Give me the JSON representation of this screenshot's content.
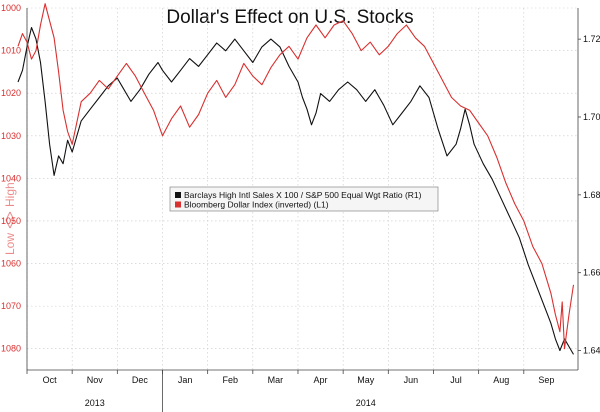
{
  "chart_data": {
    "type": "line",
    "title": "Dollar's Effect on U.S. Stocks",
    "left_axis": {
      "label_low": "Low",
      "label_high": "High",
      "inverted": true,
      "range": [
        1000,
        1085
      ],
      "ticks": [
        "1000",
        "1010",
        "1020",
        "1030",
        "1040",
        "1050",
        "1060",
        "1070",
        "1080"
      ],
      "color": "#d93030"
    },
    "right_axis": {
      "range": [
        1.635,
        1.728
      ],
      "ticks": [
        "1.72",
        "1.70",
        "1.68",
        "1.66",
        "1.64"
      ],
      "color": "#111111"
    },
    "x_axis": {
      "months": [
        "Oct",
        "Nov",
        "Dec",
        "Jan",
        "Feb",
        "Mar",
        "Apr",
        "May",
        "Jun",
        "Jul",
        "Aug",
        "Sep"
      ],
      "years": [
        "2013",
        "2014"
      ],
      "range": [
        0,
        12.2
      ]
    },
    "series": [
      {
        "name": "Barclays High Intl Sales X 100 / S&P 500 Equal Wgt Ratio (R1)",
        "axis": "right",
        "color": "#111111",
        "points": [
          [
            -0.2,
            1.709
          ],
          [
            -0.1,
            1.712
          ],
          [
            0.0,
            1.718
          ],
          [
            0.1,
            1.723
          ],
          [
            0.2,
            1.72
          ],
          [
            0.3,
            1.714
          ],
          [
            0.4,
            1.704
          ],
          [
            0.5,
            1.693
          ],
          [
            0.6,
            1.685
          ],
          [
            0.7,
            1.69
          ],
          [
            0.8,
            1.688
          ],
          [
            0.9,
            1.694
          ],
          [
            1.0,
            1.691
          ],
          [
            1.1,
            1.695
          ],
          [
            1.2,
            1.699
          ],
          [
            1.4,
            1.702
          ],
          [
            1.6,
            1.705
          ],
          [
            1.8,
            1.708
          ],
          [
            2.0,
            1.71
          ],
          [
            2.1,
            1.708
          ],
          [
            2.3,
            1.704
          ],
          [
            2.5,
            1.707
          ],
          [
            2.7,
            1.711
          ],
          [
            2.9,
            1.714
          ],
          [
            3.0,
            1.712
          ],
          [
            3.2,
            1.709
          ],
          [
            3.4,
            1.712
          ],
          [
            3.6,
            1.715
          ],
          [
            3.8,
            1.713
          ],
          [
            4.0,
            1.716
          ],
          [
            4.2,
            1.719
          ],
          [
            4.4,
            1.717
          ],
          [
            4.6,
            1.72
          ],
          [
            4.8,
            1.717
          ],
          [
            5.0,
            1.714
          ],
          [
            5.2,
            1.718
          ],
          [
            5.4,
            1.72
          ],
          [
            5.6,
            1.718
          ],
          [
            5.8,
            1.713
          ],
          [
            6.0,
            1.709
          ],
          [
            6.1,
            1.705
          ],
          [
            6.2,
            1.702
          ],
          [
            6.3,
            1.698
          ],
          [
            6.4,
            1.701
          ],
          [
            6.5,
            1.706
          ],
          [
            6.7,
            1.704
          ],
          [
            6.9,
            1.707
          ],
          [
            7.1,
            1.709
          ],
          [
            7.3,
            1.707
          ],
          [
            7.5,
            1.704
          ],
          [
            7.7,
            1.707
          ],
          [
            7.9,
            1.703
          ],
          [
            8.1,
            1.698
          ],
          [
            8.3,
            1.701
          ],
          [
            8.5,
            1.704
          ],
          [
            8.7,
            1.708
          ],
          [
            8.9,
            1.705
          ],
          [
            9.1,
            1.697
          ],
          [
            9.3,
            1.69
          ],
          [
            9.5,
            1.693
          ],
          [
            9.6,
            1.697
          ],
          [
            9.7,
            1.702
          ],
          [
            9.8,
            1.698
          ],
          [
            9.9,
            1.693
          ],
          [
            10.1,
            1.688
          ],
          [
            10.3,
            1.684
          ],
          [
            10.5,
            1.679
          ],
          [
            10.7,
            1.674
          ],
          [
            10.9,
            1.669
          ],
          [
            11.1,
            1.662
          ],
          [
            11.3,
            1.656
          ],
          [
            11.5,
            1.65
          ],
          [
            11.6,
            1.647
          ],
          [
            11.7,
            1.643
          ],
          [
            11.8,
            1.64
          ],
          [
            11.9,
            1.643
          ],
          [
            12.0,
            1.641
          ],
          [
            12.1,
            1.639
          ]
        ]
      },
      {
        "name": "Bloomberg Dollar Index (inverted) (L1)",
        "axis": "left",
        "color": "#d93030",
        "points": [
          [
            -0.2,
            1009
          ],
          [
            -0.1,
            1006
          ],
          [
            0.0,
            1008
          ],
          [
            0.1,
            1012
          ],
          [
            0.2,
            1010
          ],
          [
            0.3,
            1004
          ],
          [
            0.4,
            999
          ],
          [
            0.5,
            1003
          ],
          [
            0.6,
            1007
          ],
          [
            0.7,
            1015
          ],
          [
            0.8,
            1024
          ],
          [
            0.9,
            1029
          ],
          [
            1.0,
            1032
          ],
          [
            1.1,
            1027
          ],
          [
            1.2,
            1022
          ],
          [
            1.4,
            1020
          ],
          [
            1.6,
            1017
          ],
          [
            1.8,
            1019
          ],
          [
            2.0,
            1016
          ],
          [
            2.2,
            1013
          ],
          [
            2.4,
            1016
          ],
          [
            2.6,
            1020
          ],
          [
            2.8,
            1024
          ],
          [
            2.9,
            1027
          ],
          [
            3.0,
            1030
          ],
          [
            3.2,
            1026
          ],
          [
            3.4,
            1023
          ],
          [
            3.6,
            1028
          ],
          [
            3.8,
            1025
          ],
          [
            4.0,
            1020
          ],
          [
            4.2,
            1017
          ],
          [
            4.4,
            1021
          ],
          [
            4.6,
            1018
          ],
          [
            4.8,
            1013
          ],
          [
            5.0,
            1016
          ],
          [
            5.2,
            1018
          ],
          [
            5.4,
            1014
          ],
          [
            5.6,
            1011
          ],
          [
            5.8,
            1009
          ],
          [
            6.0,
            1012
          ],
          [
            6.2,
            1007
          ],
          [
            6.4,
            1004
          ],
          [
            6.6,
            1007
          ],
          [
            6.8,
            1004
          ],
          [
            7.0,
            1003
          ],
          [
            7.2,
            1006
          ],
          [
            7.4,
            1010
          ],
          [
            7.6,
            1008
          ],
          [
            7.8,
            1011
          ],
          [
            8.0,
            1009
          ],
          [
            8.2,
            1006
          ],
          [
            8.4,
            1004
          ],
          [
            8.6,
            1007
          ],
          [
            8.8,
            1009
          ],
          [
            9.0,
            1013
          ],
          [
            9.2,
            1017
          ],
          [
            9.4,
            1021
          ],
          [
            9.6,
            1023
          ],
          [
            9.8,
            1024
          ],
          [
            10.0,
            1027
          ],
          [
            10.2,
            1030
          ],
          [
            10.4,
            1035
          ],
          [
            10.6,
            1041
          ],
          [
            10.8,
            1046
          ],
          [
            11.0,
            1050
          ],
          [
            11.2,
            1056
          ],
          [
            11.4,
            1060
          ],
          [
            11.6,
            1067
          ],
          [
            11.7,
            1072
          ],
          [
            11.8,
            1076
          ],
          [
            11.85,
            1069
          ],
          [
            11.9,
            1080
          ],
          [
            12.0,
            1072
          ],
          [
            12.1,
            1065
          ]
        ]
      }
    ],
    "legend": {
      "placement": "center",
      "entries": [
        {
          "label": "Barclays High Intl Sales X 100 / S&P 500 Equal Wgt Ratio (R1)",
          "color": "#111111"
        },
        {
          "label": "Bloomberg Dollar Index (inverted) (L1)",
          "color": "#d93030"
        }
      ]
    },
    "grid": true
  }
}
